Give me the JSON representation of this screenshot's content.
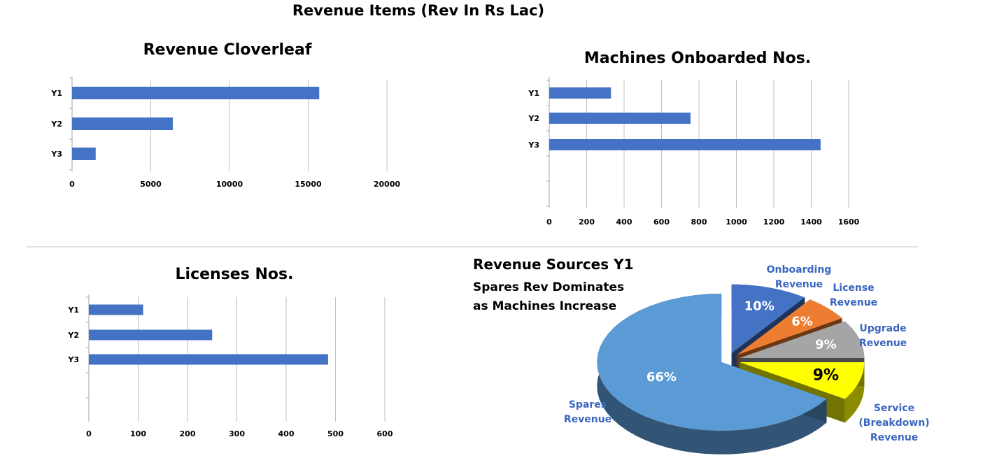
{
  "page_title": "Revenue Items (Rev In Rs Lac)",
  "chart_data": [
    {
      "type": "bar",
      "orientation": "horizontal",
      "title": "Revenue Cloverleaf",
      "categories": [
        "Y1",
        "Y2",
        "Y3"
      ],
      "values": [
        15700,
        6400,
        1500
      ],
      "xlim": [
        0,
        20000
      ],
      "xticks": [
        "0",
        "5000",
        "10000",
        "15000",
        "20000"
      ],
      "grid": true,
      "color": "#4472C4"
    },
    {
      "type": "bar",
      "orientation": "horizontal",
      "title": "Machines Onboarded Nos.",
      "categories": [
        "Y1",
        "Y2",
        "Y3"
      ],
      "values": [
        330,
        755,
        1450
      ],
      "xlim": [
        0,
        1600
      ],
      "xticks": [
        "0",
        "200",
        "400",
        "600",
        "800",
        "1000",
        "1200",
        "1400",
        "1600"
      ],
      "grid": true,
      "color": "#4472C4"
    },
    {
      "type": "bar",
      "orientation": "horizontal",
      "title": "Licenses Nos.",
      "categories": [
        "Y1",
        "Y2",
        "Y3"
      ],
      "values": [
        110,
        250,
        485
      ],
      "xlim": [
        0,
        600
      ],
      "xticks": [
        "0",
        "100",
        "200",
        "300",
        "400",
        "500",
        "600"
      ],
      "grid": true,
      "color": "#4472C4"
    },
    {
      "type": "pie",
      "style": "3d-exploded",
      "title": "Revenue Sources Y1",
      "subtitle": [
        "Spares Rev Dominates",
        "as Machines Increase"
      ],
      "slices": [
        {
          "name": [
            "Onboarding",
            "Revenue"
          ],
          "value": 10,
          "label": "10%",
          "color": "#4472C4"
        },
        {
          "name": [
            "License",
            "Revenue"
          ],
          "value": 6,
          "label": "6%",
          "color": "#ED7D31"
        },
        {
          "name": [
            "Upgrade",
            "Revenue"
          ],
          "value": 9,
          "label": "9%",
          "color": "#A5A5A5"
        },
        {
          "name": [
            "Service",
            "(Breakdown)",
            "Revenue"
          ],
          "value": 9,
          "label": "9%",
          "color": "#FFFF00"
        },
        {
          "name": [
            "Spares",
            "Revenue"
          ],
          "value": 66,
          "label": "66%",
          "color": "#5B9BD5"
        }
      ]
    }
  ]
}
